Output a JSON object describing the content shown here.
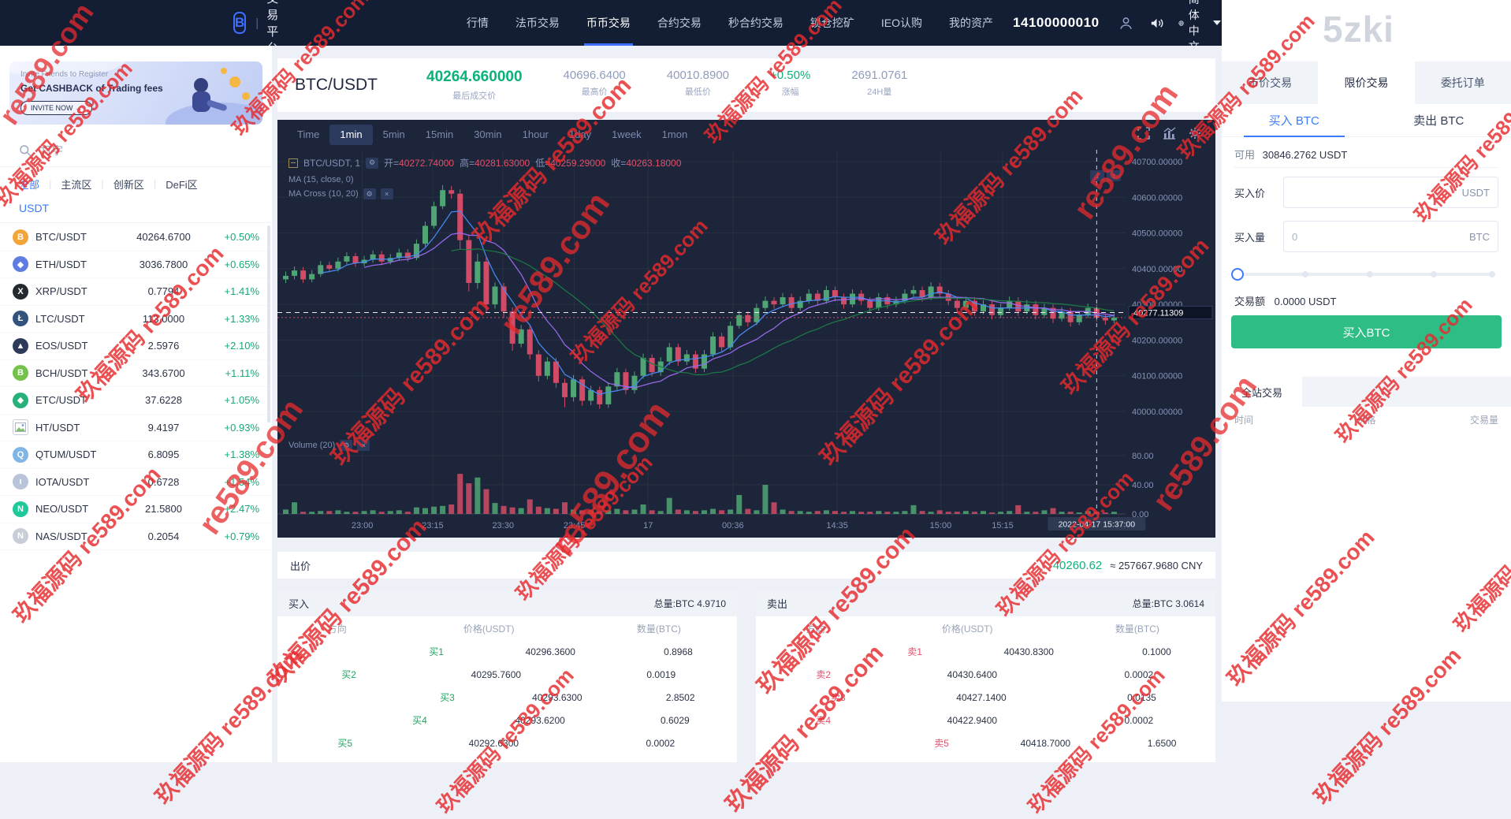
{
  "brand_watermark": "5zki",
  "watermark": {
    "text": "玖福源码 re589.com",
    "text2": "re589.com",
    "color": "#e72b2e"
  },
  "navbar": {
    "logo_glyph": "B",
    "logo_text": "交易平台",
    "items": [
      "行情",
      "法币交易",
      "币币交易",
      "合约交易",
      "秒合约交易",
      "锁仓挖矿",
      "IEO认购",
      "我的资产"
    ],
    "active_item": "币币交易",
    "account_number": "14100000010",
    "language": "简体中文"
  },
  "sidebar": {
    "banner": {
      "line1": "Invite Friends to Register",
      "line2": "Get CASHBACK of Trading fees",
      "button": "INVITE NOW →"
    },
    "search_placeholder": "打字",
    "tabs": [
      "全部",
      "主流区",
      "创新区",
      "DeFi区"
    ],
    "active_tab": "全部",
    "quote_group": "USDT",
    "coins": [
      {
        "pair": "BTC/USDT",
        "price": "40264.6700",
        "change": "+0.50%",
        "icon": "btc-icon",
        "color": "#f2a63a",
        "symbol": "B"
      },
      {
        "pair": "ETH/USDT",
        "price": "3036.7800",
        "change": "+0.65%",
        "icon": "eth-icon",
        "color": "#5e7ce2",
        "symbol": "◆"
      },
      {
        "pair": "XRP/USDT",
        "price": "0.7794",
        "change": "+1.41%",
        "icon": "xrp-icon",
        "color": "#23292f",
        "symbol": "X"
      },
      {
        "pair": "LTC/USDT",
        "price": "113.0000",
        "change": "+1.33%",
        "icon": "ltc-icon",
        "color": "#33537f",
        "symbol": "Ł"
      },
      {
        "pair": "EOS/USDT",
        "price": "2.5976",
        "change": "+2.10%",
        "icon": "eos-icon",
        "color": "#2d3a5a",
        "symbol": "▲"
      },
      {
        "pair": "BCH/USDT",
        "price": "343.6700",
        "change": "+1.11%",
        "icon": "bch-icon",
        "color": "#74c24a",
        "symbol": "B"
      },
      {
        "pair": "ETC/USDT",
        "price": "37.6228",
        "change": "+1.05%",
        "icon": "etc-icon",
        "color": "#27b07a",
        "symbol": "◆"
      },
      {
        "pair": "HT/USDT",
        "price": "9.4197",
        "change": "+0.93%",
        "icon": "broken-image-icon",
        "color": "#ffffff",
        "symbol": ""
      },
      {
        "pair": "QTUM/USDT",
        "price": "6.8095",
        "change": "+1.38%",
        "icon": "qtum-icon",
        "color": "#7fb6e6",
        "symbol": "Q"
      },
      {
        "pair": "IOTA/USDT",
        "price": "0.6728",
        "change": "+1.54%",
        "icon": "iota-icon",
        "color": "#b9c4d8",
        "symbol": "ι"
      },
      {
        "pair": "NEO/USDT",
        "price": "21.5800",
        "change": "+2.47%",
        "icon": "neo-icon",
        "color": "#1fc99a",
        "symbol": "N"
      },
      {
        "pair": "NAS/USDT",
        "price": "0.2054",
        "change": "+0.79%",
        "icon": "nas-icon",
        "color": "#c8cdd8",
        "symbol": "N"
      }
    ]
  },
  "market_header": {
    "pair": "BTC/USDT",
    "stats": [
      {
        "value": "40264.660000",
        "label": "最后成交价",
        "accent": "green",
        "big": true
      },
      {
        "value": "40696.6400",
        "label": "最高价"
      },
      {
        "value": "40010.8900",
        "label": "最低价"
      },
      {
        "value": "+0.50%",
        "label": "涨幅",
        "accent": "green"
      },
      {
        "value": "2691.0761",
        "label": "24H量"
      }
    ]
  },
  "chart": {
    "intervals": [
      "Time",
      "1min",
      "5min",
      "15min",
      "30min",
      "1hour",
      "1day",
      "1week",
      "1mon"
    ],
    "active_interval": "1min",
    "legend": {
      "pair": "BTC/USDT, 1",
      "o_label": "开=",
      "o": "40272.74000",
      "h_label": "高=",
      "h": "40281.63000",
      "l_label": "低=",
      "l": "40259.29000",
      "c_label": "收=",
      "c": "40263.18000"
    },
    "ma_label": "MA (15, close, 0)",
    "ma_cross_label": "MA Cross (10, 20)",
    "volume_label": "Volume (20)",
    "price_tag": "40277.11309",
    "date_tag": "2022-04-17 15:37:00"
  },
  "chart_data": {
    "type": "candlestick",
    "pair": "BTC/USDT",
    "interval": "1min",
    "price_range": [
      40000,
      40700
    ],
    "y_ticks": [
      {
        "label": "40700.00000",
        "value": 40700
      },
      {
        "label": "40600.00000",
        "value": 40600
      },
      {
        "label": "40500.00000",
        "value": 40500
      },
      {
        "label": "40400.00000",
        "value": 40400
      },
      {
        "label": "40300.00000",
        "value": 40300
      },
      {
        "label": "40200.00000",
        "value": 40200
      },
      {
        "label": "40100.00000",
        "value": 40100
      },
      {
        "label": "40000.00000",
        "value": 40000
      }
    ],
    "volume_ticks": [
      {
        "label": "80.00",
        "value": 80
      },
      {
        "label": "40.00",
        "value": 40
      },
      {
        "label": "0.00",
        "value": 0
      }
    ],
    "x_ticks": [
      {
        "label": "23:00",
        "pos": 0.1
      },
      {
        "label": "23:15",
        "pos": 0.183
      },
      {
        "label": "23:30",
        "pos": 0.266
      },
      {
        "label": "23:45",
        "pos": 0.35
      },
      {
        "label": "17",
        "pos": 0.437
      },
      {
        "label": "00:36",
        "pos": 0.537
      },
      {
        "label": "14:35",
        "pos": 0.66
      },
      {
        "label": "15:00",
        "pos": 0.782
      },
      {
        "label": "15:15",
        "pos": 0.855
      }
    ],
    "current_price": 40277.11309,
    "last_close": 40263.18,
    "ma_windows": [
      5,
      10,
      20
    ],
    "candles": [
      [
        40370,
        40392,
        40360,
        40380,
        6
      ],
      [
        40380,
        40406,
        40370,
        40395,
        16
      ],
      [
        40395,
        40405,
        40360,
        40370,
        3
      ],
      [
        40370,
        40396,
        40362,
        40385,
        3
      ],
      [
        40385,
        40421,
        40377,
        40410,
        4
      ],
      [
        40410,
        40420,
        40390,
        40400,
        4
      ],
      [
        40400,
        40431,
        40392,
        40420,
        5
      ],
      [
        40420,
        40446,
        40412,
        40435,
        3
      ],
      [
        40435,
        40444,
        40405,
        40415,
        3
      ],
      [
        40415,
        40436,
        40407,
        40425,
        4
      ],
      [
        40425,
        40451,
        40417,
        40440,
        5
      ],
      [
        40440,
        40450,
        40410,
        40420,
        3
      ],
      [
        40420,
        40441,
        40412,
        40430,
        4
      ],
      [
        40430,
        40456,
        40422,
        40445,
        5
      ],
      [
        40445,
        40455,
        40420,
        40430,
        3
      ],
      [
        40430,
        40482,
        40424,
        40470,
        9
      ],
      [
        40470,
        40532,
        40462,
        40520,
        8
      ],
      [
        40520,
        40588,
        40512,
        40575,
        10
      ],
      [
        40575,
        40634,
        40567,
        40620,
        11
      ],
      [
        40620,
        40632,
        40596,
        40610,
        13
      ],
      [
        40610,
        40622,
        40456,
        40480,
        55
      ],
      [
        40480,
        40495,
        40336,
        40360,
        42
      ],
      [
        40360,
        40442,
        40344,
        40420,
        50
      ],
      [
        40420,
        40432,
        40278,
        40300,
        34
      ],
      [
        40300,
        40362,
        40288,
        40350,
        15
      ],
      [
        40350,
        40360,
        40262,
        40280,
        11
      ],
      [
        40280,
        40292,
        40170,
        40190,
        9
      ],
      [
        40190,
        40242,
        40180,
        40230,
        8
      ],
      [
        40230,
        40240,
        40146,
        40160,
        20
      ],
      [
        40160,
        40172,
        40084,
        40100,
        10
      ],
      [
        40100,
        40152,
        40090,
        40140,
        8
      ],
      [
        40140,
        40150,
        40066,
        40080,
        7
      ],
      [
        40080,
        40092,
        40012,
        40040,
        16
      ],
      [
        40040,
        40102,
        40028,
        40090,
        6
      ],
      [
        40090,
        40098,
        40016,
        40030,
        5
      ],
      [
        40030,
        40072,
        40018,
        40060,
        5
      ],
      [
        40060,
        40070,
        40008,
        40020,
        4
      ],
      [
        40020,
        40082,
        40010,
        40070,
        5
      ],
      [
        40070,
        40122,
        40060,
        40110,
        7
      ],
      [
        40110,
        40120,
        40048,
        40060,
        5
      ],
      [
        40060,
        40112,
        40050,
        40100,
        6
      ],
      [
        40100,
        40162,
        40092,
        40150,
        13
      ],
      [
        40150,
        40160,
        40098,
        40110,
        5
      ],
      [
        40110,
        40152,
        40100,
        40140,
        4
      ],
      [
        40140,
        40192,
        40130,
        40180,
        22
      ],
      [
        40180,
        40190,
        40128,
        40140,
        6
      ],
      [
        40140,
        40172,
        40130,
        40160,
        5
      ],
      [
        40160,
        40170,
        40108,
        40120,
        4
      ],
      [
        40120,
        40172,
        40110,
        40160,
        5
      ],
      [
        40160,
        40222,
        40152,
        40210,
        7
      ],
      [
        40210,
        40220,
        40168,
        40180,
        5
      ],
      [
        40180,
        40252,
        40172,
        40240,
        6
      ],
      [
        40240,
        40282,
        40232,
        40270,
        26
      ],
      [
        40270,
        40280,
        40238,
        40250,
        7
      ],
      [
        40250,
        40302,
        40242,
        40290,
        5
      ],
      [
        40290,
        40322,
        40282,
        40310,
        40
      ],
      [
        40310,
        40320,
        40288,
        40300,
        16
      ],
      [
        40300,
        40332,
        40292,
        40320,
        6
      ],
      [
        40320,
        40330,
        40278,
        40290,
        4
      ],
      [
        40290,
        40322,
        40282,
        40310,
        4
      ],
      [
        40310,
        40342,
        40302,
        40330,
        3
      ],
      [
        40330,
        40340,
        40298,
        40310,
        4
      ],
      [
        40310,
        40352,
        40302,
        40340,
        5
      ],
      [
        40340,
        40350,
        40308,
        40320,
        4
      ],
      [
        40320,
        40330,
        40288,
        40300,
        3
      ],
      [
        40300,
        40342,
        40292,
        40330,
        4
      ],
      [
        40330,
        40340,
        40298,
        40310,
        3
      ],
      [
        40310,
        40320,
        40278,
        40290,
        3
      ],
      [
        40290,
        40332,
        40282,
        40320,
        4
      ],
      [
        40320,
        40330,
        40288,
        40300,
        3
      ],
      [
        40300,
        40322,
        40292,
        40310,
        3
      ],
      [
        40310,
        40342,
        40302,
        40330,
        4
      ],
      [
        40330,
        40352,
        40322,
        40340,
        12
      ],
      [
        40340,
        40350,
        40308,
        40320,
        4
      ],
      [
        40320,
        40362,
        40312,
        40350,
        3
      ],
      [
        40350,
        40360,
        40318,
        40330,
        5
      ],
      [
        40330,
        40340,
        40298,
        40310,
        3
      ],
      [
        40310,
        40320,
        40278,
        40290,
        3
      ],
      [
        40290,
        40322,
        40282,
        40310,
        4
      ],
      [
        40310,
        40320,
        40268,
        40280,
        3
      ],
      [
        40280,
        40312,
        40272,
        40300,
        4
      ],
      [
        40300,
        40310,
        40258,
        40270,
        2
      ],
      [
        40270,
        40302,
        40262,
        40290,
        3
      ],
      [
        40290,
        40322,
        40282,
        40310,
        4
      ],
      [
        40310,
        40320,
        40268,
        40280,
        12
      ],
      [
        40280,
        40312,
        40272,
        40300,
        3
      ],
      [
        40300,
        40310,
        40258,
        40270,
        3
      ],
      [
        40270,
        40302,
        40262,
        40290,
        5
      ],
      [
        40290,
        40300,
        40248,
        40260,
        8
      ],
      [
        40260,
        40292,
        40252,
        40280,
        3
      ],
      [
        40280,
        40290,
        40238,
        40250,
        3
      ],
      [
        40250,
        40282,
        40242,
        40270,
        2
      ],
      [
        40270,
        40302,
        40262,
        40290,
        4
      ],
      [
        40290,
        40300,
        40251,
        40263,
        3
      ],
      [
        40263,
        40273,
        40243,
        40255,
        2
      ],
      [
        40255,
        40275,
        40247,
        40263,
        3
      ]
    ]
  },
  "bid_row": {
    "label": "出价",
    "price": "40260.62",
    "approx": "≈ 257667.9680 CNY"
  },
  "order_books": {
    "buy": {
      "title": "买入",
      "total": "总量:BTC 4.9710",
      "headers": [
        "方向",
        "价格(USDT)",
        "数量(BTC)"
      ],
      "rows": [
        {
          "label": "买1",
          "price": "40296.3600",
          "amount": "0.8968",
          "depth_pct": 33
        },
        {
          "label": "买2",
          "price": "40295.7600",
          "amount": "0.0019",
          "depth_pct": 3
        },
        {
          "label": "买3",
          "price": "40293.6300",
          "amount": "2.8502",
          "depth_pct": 38
        },
        {
          "label": "买4",
          "price": "40293.6200",
          "amount": "0.6029",
          "depth_pct": 26
        },
        {
          "label": "买5",
          "price": "40292.6300",
          "amount": "0.0002",
          "depth_pct": 2
        }
      ]
    },
    "sell": {
      "title": "卖出",
      "total": "总量:BTC 3.0614",
      "headers": [
        "方向",
        "价格(USDT)",
        "数量(BTC)"
      ],
      "rows": [
        {
          "label": "卖1",
          "price": "40430.8300",
          "amount": "0.1000",
          "depth_pct": 33
        },
        {
          "label": "卖2",
          "price": "40430.6400",
          "amount": "0.0002",
          "depth_pct": 2
        },
        {
          "label": "卖3",
          "price": "40427.1400",
          "amount": "0.0135",
          "depth_pct": 6
        },
        {
          "label": "卖4",
          "price": "40422.9400",
          "amount": "0.0002",
          "depth_pct": 2
        },
        {
          "label": "卖5",
          "price": "40418.7000",
          "amount": "1.6500",
          "depth_pct": 46
        }
      ]
    }
  },
  "trade_panel": {
    "tabs": [
      "市价交易",
      "限价交易",
      "委托订单"
    ],
    "active_tab": "限价交易",
    "side_tabs": [
      "买入 BTC",
      "卖出 BTC"
    ],
    "active_side": "买入 BTC",
    "available_label": "可用",
    "available": "30846.2762 USDT",
    "price_label": "买入价",
    "price_value": "",
    "price_unit": "USDT",
    "amount_label": "买入量",
    "amount_placeholder": "0",
    "amount_unit": "BTC",
    "total_label": "交易额",
    "total_value": "0.0000 USDT",
    "submit": "买入BTC",
    "trades_tab": "全站交易",
    "trades_headers": [
      "时间",
      "价格",
      "交易量"
    ]
  }
}
